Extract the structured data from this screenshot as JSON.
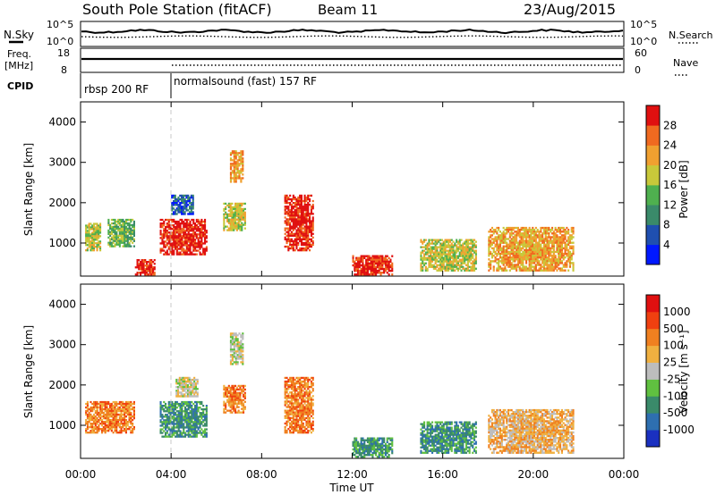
{
  "header": {
    "station": "South Pole Station (fitACF)",
    "beam": "Beam 11",
    "date": "23/Aug/2015"
  },
  "left_labels": {
    "nsky": "N.Sky",
    "freq_line1": "Freq.",
    "freq_line2": "[MHz]",
    "cpid": "CPID"
  },
  "right_labels": {
    "nsearch": "N.Search",
    "nave": "Nave"
  },
  "noise_panel": {
    "left_ticks": [
      "10^5",
      "10^0"
    ],
    "right_ticks": [
      "10^5",
      "10^0"
    ]
  },
  "freq_panel": {
    "left_ticks": [
      "18",
      "8"
    ],
    "right_ticks": [
      "60",
      "0"
    ]
  },
  "cpid_segments": [
    {
      "label": "rbsp 200 RF",
      "start_hour": 0
    },
    {
      "label": "normalsound (fast) 157 RF",
      "start_hour": 4
    }
  ],
  "colors": {
    "power_scale": [
      "#0018ff",
      "#1f4fb0",
      "#3a8a6a",
      "#4fb04f",
      "#c8c83a",
      "#f0a030",
      "#f06a20",
      "#e01010"
    ],
    "velocity_scale": [
      "#e01010",
      "#f04010",
      "#f08020",
      "#f0b040",
      "#bdbdbd",
      "#60c040",
      "#3a8a6a",
      "#2e6fb0",
      "#1a30c0"
    ],
    "grid_line": "#c8c8c8"
  },
  "chart_data": [
    {
      "type": "heatmap",
      "title": "Power",
      "ylabel": "Slant Range [km]",
      "xlabel": "Time UT",
      "xlim": [
        0,
        24
      ],
      "ylim": [
        180,
        4500
      ],
      "x_tick_labels": [
        "00:00",
        "04:00",
        "08:00",
        "12:00",
        "16:00",
        "20:00",
        "00:00"
      ],
      "y_tick_labels": [
        "1000",
        "2000",
        "3000",
        "4000"
      ],
      "colorbar": {
        "label": "Power [dB]",
        "ticks": [
          "4",
          "8",
          "12",
          "16",
          "20",
          "24",
          "28"
        ]
      },
      "echo_regions": [
        {
          "t0": 0.2,
          "t1": 0.9,
          "r0": 800,
          "r1": 1500,
          "level": 4
        },
        {
          "t0": 1.2,
          "t1": 2.4,
          "r0": 900,
          "r1": 1600,
          "level": 3
        },
        {
          "t0": 2.4,
          "t1": 3.3,
          "r0": 200,
          "r1": 600,
          "level": 7
        },
        {
          "t0": 3.5,
          "t1": 5.6,
          "r0": 700,
          "r1": 1600,
          "level": 7
        },
        {
          "t0": 4.0,
          "t1": 5.0,
          "r0": 1700,
          "r1": 2200,
          "level": 1
        },
        {
          "t0": 6.6,
          "t1": 7.2,
          "r0": 2500,
          "r1": 3300,
          "level": 5
        },
        {
          "t0": 6.3,
          "t1": 7.3,
          "r0": 1300,
          "r1": 2000,
          "level": 4
        },
        {
          "t0": 9.0,
          "t1": 10.3,
          "r0": 800,
          "r1": 2200,
          "level": 7
        },
        {
          "t0": 12.0,
          "t1": 13.8,
          "r0": 200,
          "r1": 700,
          "level": 7
        },
        {
          "t0": 15.0,
          "t1": 17.5,
          "r0": 300,
          "r1": 1100,
          "level": 4
        },
        {
          "t0": 18.0,
          "t1": 21.8,
          "r0": 300,
          "r1": 1400,
          "level": 5
        }
      ]
    },
    {
      "type": "heatmap",
      "title": "Velocity",
      "ylabel": "Slant Range [km]",
      "xlabel": "Time UT",
      "xlim": [
        0,
        24
      ],
      "ylim": [
        180,
        4500
      ],
      "x_tick_labels": [
        "00:00",
        "04:00",
        "08:00",
        "12:00",
        "16:00",
        "20:00",
        "00:00"
      ],
      "y_tick_labels": [
        "1000",
        "2000",
        "3000",
        "4000"
      ],
      "colorbar": {
        "label": "Velocity [m s⁻¹]",
        "ticks": [
          "1000",
          "500",
          "100",
          "25",
          "-25",
          "-100",
          "-500",
          "-1000"
        ]
      },
      "echo_regions": [
        {
          "t0": 0.2,
          "t1": 2.4,
          "r0": 800,
          "r1": 1600,
          "level": 2
        },
        {
          "t0": 3.5,
          "t1": 5.6,
          "r0": 700,
          "r1": 1600,
          "level": 6
        },
        {
          "t0": 4.2,
          "t1": 5.2,
          "r0": 1700,
          "r1": 2200,
          "level": 4
        },
        {
          "t0": 6.6,
          "t1": 7.2,
          "r0": 2500,
          "r1": 3300,
          "level": 4
        },
        {
          "t0": 6.3,
          "t1": 7.3,
          "r0": 1300,
          "r1": 2000,
          "level": 2
        },
        {
          "t0": 9.0,
          "t1": 10.3,
          "r0": 800,
          "r1": 2200,
          "level": 2
        },
        {
          "t0": 12.0,
          "t1": 13.8,
          "r0": 200,
          "r1": 700,
          "level": 6
        },
        {
          "t0": 15.0,
          "t1": 17.5,
          "r0": 300,
          "r1": 1100,
          "level": 6
        },
        {
          "t0": 18.0,
          "t1": 21.8,
          "r0": 300,
          "r1": 1400,
          "level": 3
        }
      ]
    }
  ]
}
